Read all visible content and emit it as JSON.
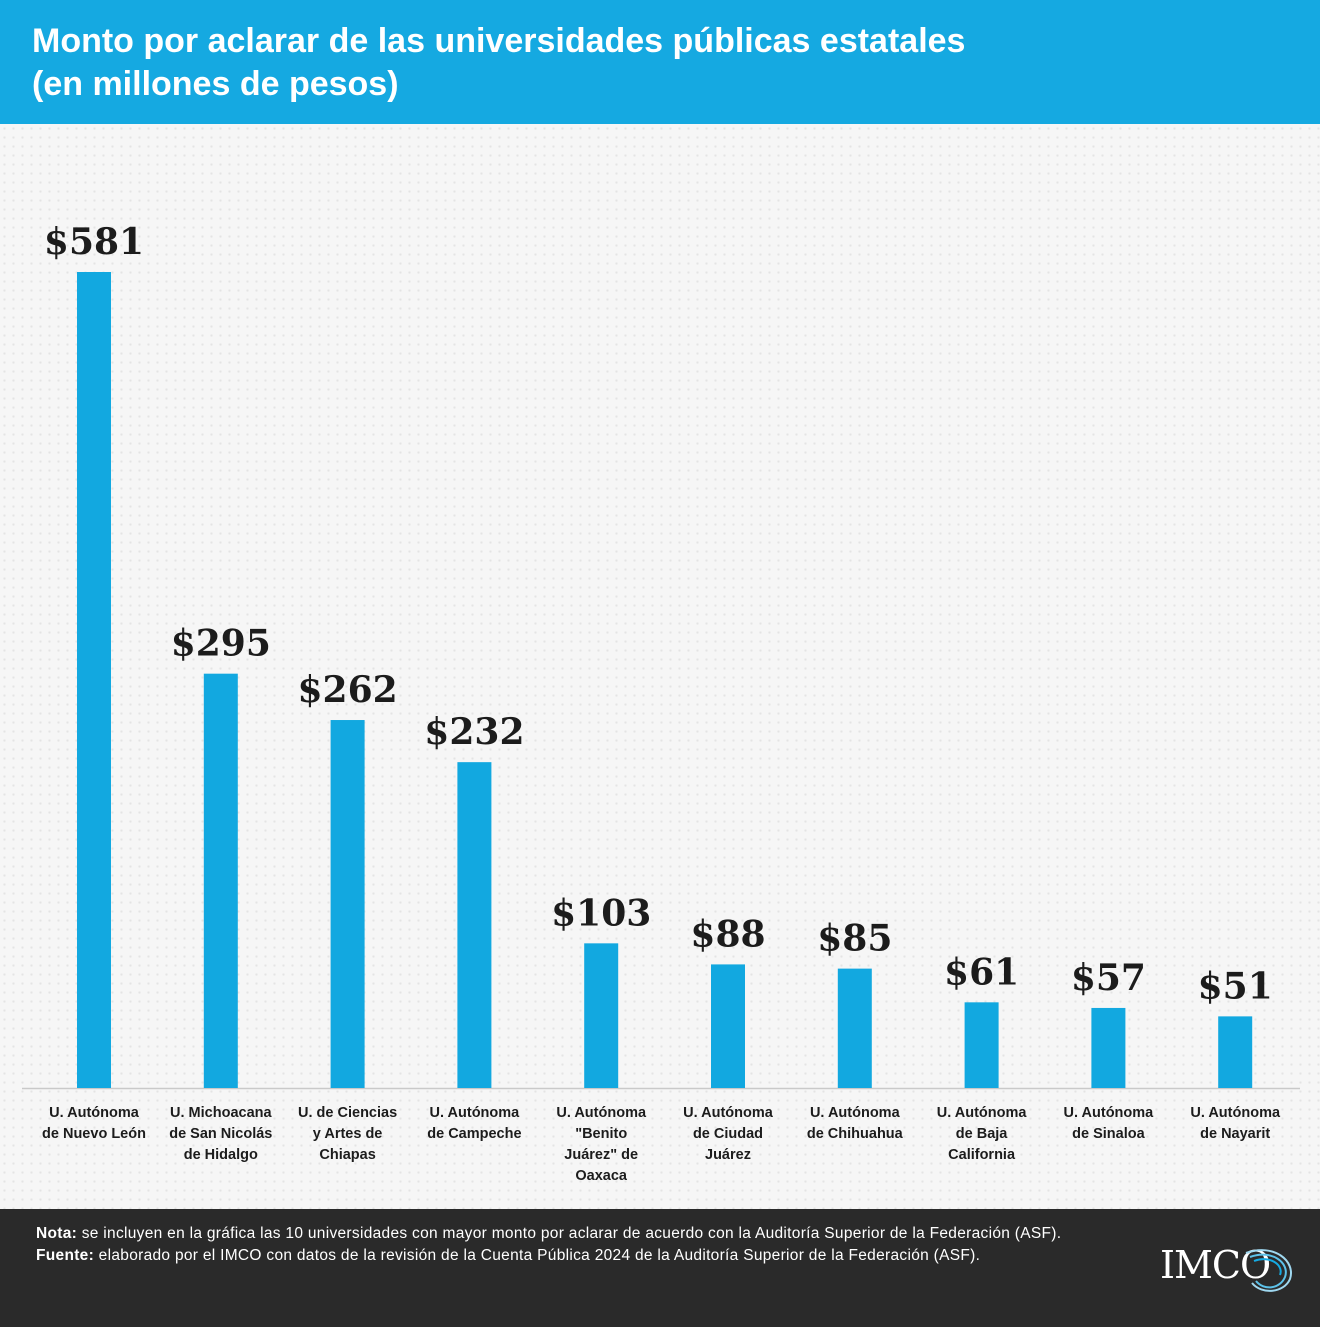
{
  "header": {
    "title_line1": "Monto por aclarar de las universidades públicas estatales",
    "title_line2": "(en millones de pesos)"
  },
  "chart_data": {
    "type": "bar",
    "title": "Monto por aclarar de las universidades públicas estatales (en millones de pesos)",
    "xlabel": "",
    "ylabel": "",
    "ylim": [
      0,
      581
    ],
    "grid": false,
    "categories": [
      "U. Autónoma de Nuevo León",
      "U. Michoacana de San Nicolás de Hidalgo",
      "U. de Ciencias y Artes de Chiapas",
      "U. Autónoma de Campeche",
      "U. Autónoma \"Benito Juárez\" de Oaxaca",
      "U. Autónoma de Ciudad Juárez",
      "U. Autónoma de Chihuahua",
      "U. Autónoma de Baja California",
      "U. Autónoma de Sinaloa",
      "U. Autónoma de Nayarit"
    ],
    "category_lines": [
      [
        "U. Autónoma",
        "de Nuevo León"
      ],
      [
        "U. Michoacana",
        "de San Nicolás",
        "de Hidalgo"
      ],
      [
        "U. de Ciencias",
        "y Artes de",
        "Chiapas"
      ],
      [
        "U. Autónoma",
        "de Campeche"
      ],
      [
        "U.  Autónoma",
        "\"Benito",
        "Juárez\" de",
        "Oaxaca"
      ],
      [
        "U. Autónoma",
        "de Ciudad",
        "Juárez"
      ],
      [
        "U. Autónoma",
        "de Chihuahua"
      ],
      [
        "U. Autónoma",
        "de Baja",
        "California"
      ],
      [
        "U. Autónoma",
        "de Sinaloa"
      ],
      [
        "U. Autónoma",
        "de Nayarit"
      ]
    ],
    "values": [
      581,
      295,
      262,
      232,
      103,
      88,
      85,
      61,
      57,
      51
    ],
    "value_labels": [
      "$581",
      "$295",
      "$262",
      "$232",
      "$103",
      "$88",
      "$85",
      "$61",
      "$57",
      "$51"
    ],
    "bar_color": "#12a8e0"
  },
  "footer": {
    "note_label": "Nota:",
    "note_text": " se incluyen en la gráfica las 10 universidades con mayor monto por aclarar de acuerdo con la Auditoría Superior de la Federación (ASF).",
    "source_label": "Fuente:",
    "source_text": " elaborado por el IMCO con datos de la revisión de la Cuenta Pública 2024 de la Auditoría Superior de la Federación (ASF).",
    "logo_text": "IMCO"
  },
  "colors": {
    "header_bg": "#15a9e1",
    "footer_bg": "#2a2a2a",
    "bar": "#12a8e0"
  }
}
